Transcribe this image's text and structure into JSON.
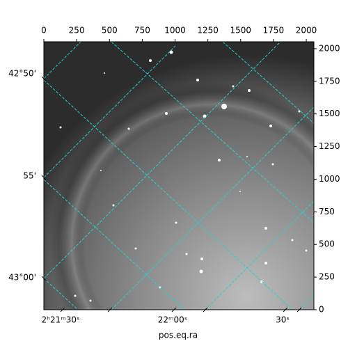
{
  "chart_data": {
    "type": "image",
    "xlabel": "pos.eq.ra",
    "xlim": [
      0,
      2058
    ],
    "xticks": [
      0,
      250,
      500,
      750,
      1000,
      1250,
      1500,
      1750,
      2000
    ],
    "ylim": [
      0,
      2053
    ],
    "yticks": [
      0,
      250,
      500,
      750,
      1000,
      1250,
      1500,
      1750,
      2000
    ],
    "dec_ticks": [
      "42°50'",
      "55'",
      "43°00'"
    ],
    "ra_ticks": [
      "2ʰ21ᵐ30ˢ",
      "22ᵐ00ˢ",
      "30ˢ"
    ],
    "grid_color": "#22d3d3"
  }
}
